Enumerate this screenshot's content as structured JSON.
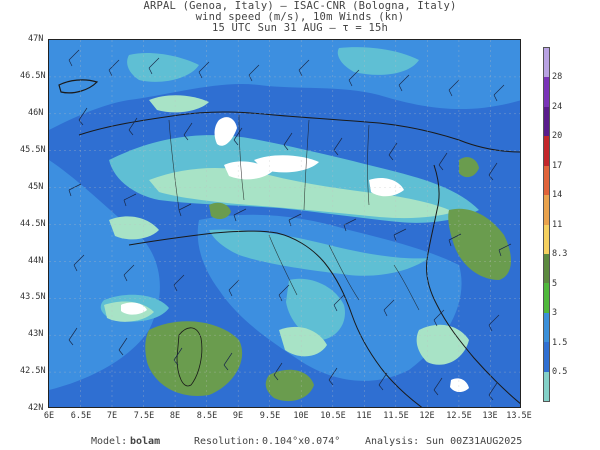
{
  "header": {
    "line1": "ARPAL (Genoa, Italy)  –  ISAC-CNR (Bologna, Italy)",
    "line2": "wind speed (m/s), 10m Winds (kn)",
    "line3": "15 UTC Sun 31 AUG  –  τ = 15h"
  },
  "axes": {
    "lat_labels": [
      "47N",
      "46.5N",
      "46N",
      "45.5N",
      "45N",
      "44.5N",
      "44N",
      "43.5N",
      "43N",
      "42.5N",
      "42N"
    ],
    "lon_labels": [
      "6E",
      "6.5E",
      "7E",
      "7.5E",
      "8E",
      "8.5E",
      "9E",
      "9.5E",
      "10E",
      "10.5E",
      "11E",
      "11.5E",
      "12E",
      "12.5E",
      "13E",
      "13.5E"
    ]
  },
  "colorbar": {
    "labels": [
      "28",
      "24",
      "20",
      "17",
      "14",
      "11",
      "8.3",
      "5",
      "3",
      "1.5",
      "0.5"
    ],
    "colors": [
      "#b9a3e3",
      "#7a34b8",
      "#5a1c8c",
      "#c2262a",
      "#e0633a",
      "#e9a24d",
      "#f4d060",
      "#5c8a3f",
      "#4fb83b",
      "#3a8fd9",
      "#2f6fd2",
      "#84d1c8"
    ]
  },
  "map_colors": {
    "calm": "#ffffff",
    "very_light": "#a8e3c6",
    "light_teal": "#5fbfd4",
    "light_blue": "#3d8fe0",
    "blue": "#2f6fd2",
    "strong": "#6a9c4e"
  },
  "footer": {
    "model_label": "Model:",
    "model_value": "bolam",
    "resolution_label": "Resolution:",
    "resolution_value": "0.104°x0.074°",
    "analysis_label": "Analysis:",
    "analysis_value": "Sun 00Z31AUG2025"
  }
}
